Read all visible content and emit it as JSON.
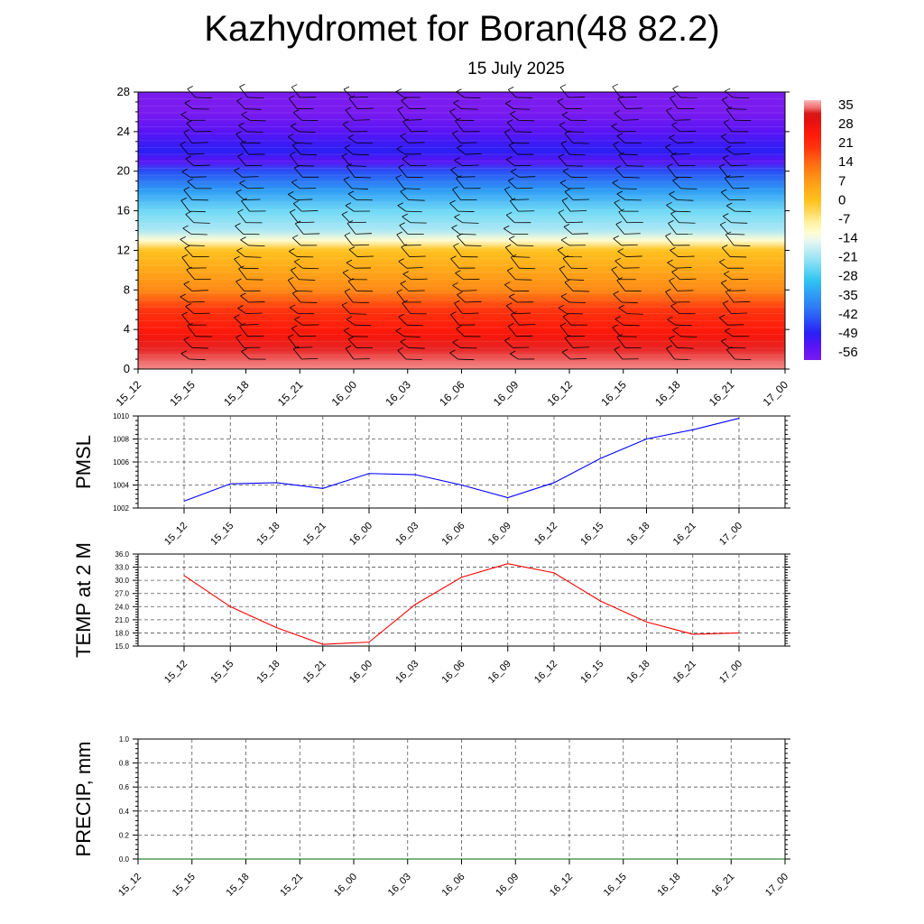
{
  "title": "Kazhydromet for Boran(48 82.2)",
  "subtitle": "15 July 2025",
  "colors": {
    "pmsl_line": "#0000ff",
    "temp_line": "#ff0000",
    "precip_line": "#006400",
    "grid": "#555555"
  },
  "chart_data": [
    {
      "type": "heatmap",
      "title": "",
      "xlabel": "",
      "ylabel": "",
      "x_tick_labels": [
        "15_12",
        "15_15",
        "15_18",
        "15_21",
        "16_00",
        "16_03",
        "16_06",
        "16_09",
        "16_12",
        "16_15",
        "16_18",
        "16_21",
        "17_00"
      ],
      "y_ticks": [
        0,
        4,
        8,
        12,
        16,
        20,
        24,
        28
      ],
      "ylim": [
        0,
        28
      ],
      "colorbar": {
        "labels": [
          "35",
          "28",
          "21",
          "14",
          "7",
          "0",
          "-7",
          "-14",
          "-21",
          "-28",
          "-35",
          "-42",
          "-49",
          "-56"
        ],
        "min": -60,
        "max": 38
      },
      "levels": [
        0,
        2,
        4,
        6,
        8,
        10,
        12,
        13,
        14,
        16,
        18,
        20,
        21,
        22,
        24,
        26,
        28
      ],
      "values_by_level": [
        35,
        32,
        26,
        20,
        14,
        8,
        0,
        -10,
        -17,
        -25,
        -33,
        -45,
        -52,
        -48,
        -55,
        -58,
        -60
      ],
      "wind_barbs": true
    },
    {
      "type": "line",
      "ylabel": "PMSL",
      "ylim": [
        1002,
        1010
      ],
      "y_ticks": [
        "1002",
        "1004",
        "1006",
        "1008",
        "1010"
      ],
      "categories": [
        "15_12",
        "15_15",
        "15_18",
        "15_21",
        "16_00",
        "16_03",
        "16_06",
        "16_09",
        "16_12",
        "16_15",
        "16_18",
        "16_21",
        "17_00"
      ],
      "series": [
        {
          "values": [
            1002.6,
            1004.1,
            1004.2,
            1003.7,
            1005.0,
            1004.9,
            1004.0,
            1002.9,
            1004.2,
            1006.3,
            1008.0,
            1008.8,
            1009.8
          ]
        }
      ]
    },
    {
      "type": "line",
      "ylabel": "TEMP at 2 M",
      "ylim": [
        15,
        36
      ],
      "y_ticks": [
        "15.0",
        "18.0",
        "21.0",
        "24.0",
        "27.0",
        "30.0",
        "33.0",
        "36.0"
      ],
      "categories": [
        "15_12",
        "15_15",
        "15_18",
        "15_21",
        "16_00",
        "16_03",
        "16_06",
        "16_09",
        "16_12",
        "16_15",
        "16_18",
        "16_21",
        "17_00"
      ],
      "series": [
        {
          "values": [
            31.1,
            24.0,
            19.2,
            15.4,
            15.9,
            24.5,
            30.7,
            33.8,
            31.7,
            25.3,
            20.5,
            17.7,
            18.0
          ]
        }
      ]
    },
    {
      "type": "line",
      "ylabel": "PRECIP, mm",
      "ylim": [
        0,
        1
      ],
      "y_ticks": [
        "0.0",
        "0.2",
        "0.4",
        "0.6",
        "0.8",
        "1.0"
      ],
      "categories": [
        "15_12",
        "15_15",
        "15_18",
        "15_21",
        "16_00",
        "16_03",
        "16_06",
        "16_09",
        "16_12",
        "16_15",
        "16_18",
        "16_21",
        "17_00"
      ],
      "series": [
        {
          "values": [
            0,
            0,
            0,
            0,
            0,
            0,
            0,
            0,
            0,
            0,
            0,
            0,
            0
          ]
        }
      ]
    }
  ]
}
